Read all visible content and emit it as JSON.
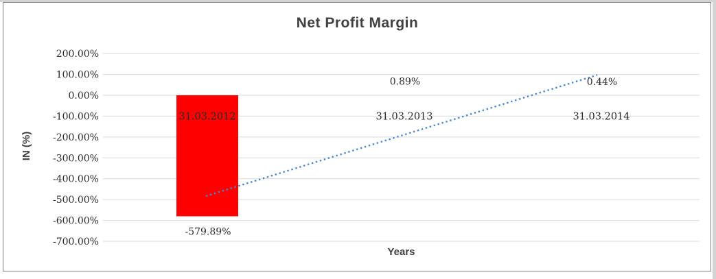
{
  "chart_data": {
    "type": "bar",
    "title": "Net Profit Margin",
    "xlabel": "Years",
    "ylabel": "IN (%)",
    "categories": [
      "31.03.2012",
      "31.03.2013",
      "31.03.2014"
    ],
    "values": [
      -579.89,
      0.89,
      0.44
    ],
    "data_labels": [
      "-579.89%",
      "0.89%",
      "0.44%"
    ],
    "ylim": [
      -700,
      200
    ],
    "ytick_step": 100,
    "ytick_labels": [
      "200.00%",
      "100.00%",
      "0.00%",
      "-100.00%",
      "-200.00%",
      "-300.00%",
      "-400.00%",
      "-500.00%",
      "-600.00%",
      "-700.00%"
    ],
    "grid": true,
    "legend": "none",
    "bar_color": "#FF0000",
    "grid_color": "#D9D9D9",
    "label_color": "#2B2B2B",
    "title_color": "#404040",
    "trendline": {
      "type": "linear",
      "style": "dotted",
      "color": "#4A86C8"
    }
  }
}
